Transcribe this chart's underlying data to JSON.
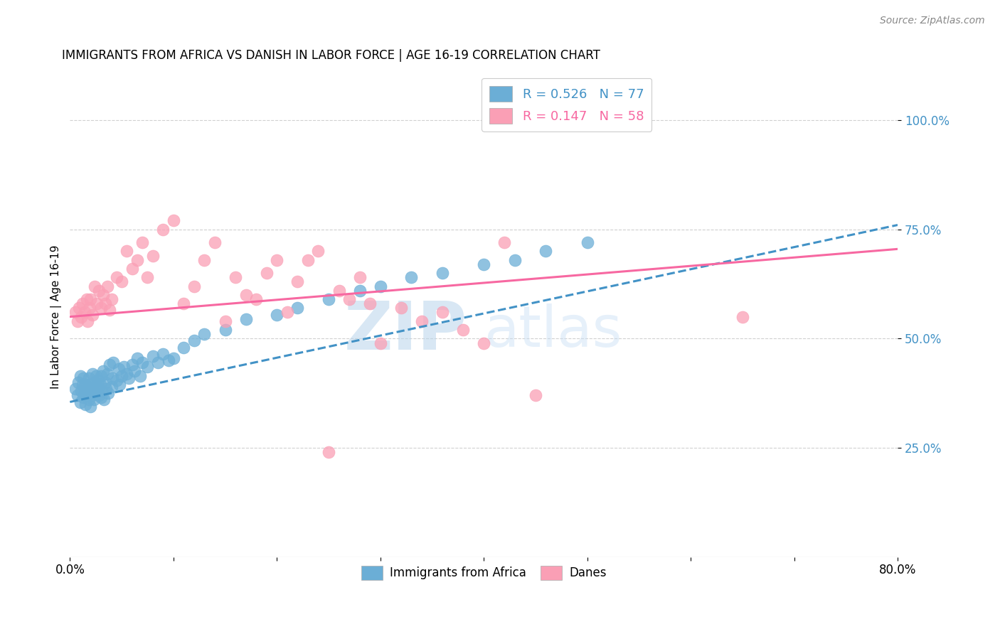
{
  "title": "IMMIGRANTS FROM AFRICA VS DANISH IN LABOR FORCE | AGE 16-19 CORRELATION CHART",
  "source": "Source: ZipAtlas.com",
  "ylabel": "In Labor Force | Age 16-19",
  "xlim": [
    0.0,
    0.8
  ],
  "ylim": [
    0.0,
    1.1
  ],
  "ytick_positions": [
    0.25,
    0.5,
    0.75,
    1.0
  ],
  "ytick_labels": [
    "25.0%",
    "50.0%",
    "75.0%",
    "100.0%"
  ],
  "blue_color": "#6baed6",
  "pink_color": "#fa9fb5",
  "blue_line_color": "#4292c6",
  "pink_line_color": "#f768a1",
  "legend_blue_label": "R = 0.526   N = 77",
  "legend_pink_label": "R = 0.147   N = 58",
  "legend_africa_label": "Immigrants from Africa",
  "legend_danes_label": "Danes",
  "watermark_zip": "ZIP",
  "watermark_atlas": "atlas",
  "background_color": "#ffffff",
  "grid_color": "#d0d0d0",
  "blue_scatter_x": [
    0.005,
    0.007,
    0.008,
    0.01,
    0.01,
    0.011,
    0.012,
    0.013,
    0.013,
    0.014,
    0.015,
    0.015,
    0.016,
    0.017,
    0.018,
    0.018,
    0.019,
    0.02,
    0.02,
    0.021,
    0.022,
    0.022,
    0.023,
    0.024,
    0.025,
    0.025,
    0.026,
    0.027,
    0.028,
    0.029,
    0.03,
    0.03,
    0.031,
    0.032,
    0.033,
    0.034,
    0.035,
    0.036,
    0.037,
    0.038,
    0.04,
    0.041,
    0.042,
    0.045,
    0.047,
    0.048,
    0.05,
    0.052,
    0.055,
    0.057,
    0.06,
    0.062,
    0.065,
    0.068,
    0.07,
    0.075,
    0.08,
    0.085,
    0.09,
    0.095,
    0.1,
    0.11,
    0.12,
    0.13,
    0.15,
    0.17,
    0.2,
    0.22,
    0.25,
    0.28,
    0.3,
    0.33,
    0.36,
    0.4,
    0.43,
    0.46,
    0.5
  ],
  "blue_scatter_y": [
    0.385,
    0.37,
    0.4,
    0.355,
    0.415,
    0.38,
    0.395,
    0.365,
    0.41,
    0.375,
    0.35,
    0.395,
    0.37,
    0.385,
    0.36,
    0.41,
    0.375,
    0.345,
    0.395,
    0.37,
    0.385,
    0.42,
    0.36,
    0.4,
    0.375,
    0.415,
    0.39,
    0.405,
    0.37,
    0.395,
    0.365,
    0.415,
    0.38,
    0.425,
    0.36,
    0.4,
    0.385,
    0.42,
    0.375,
    0.44,
    0.39,
    0.41,
    0.445,
    0.405,
    0.43,
    0.395,
    0.415,
    0.435,
    0.42,
    0.41,
    0.44,
    0.425,
    0.455,
    0.415,
    0.445,
    0.435,
    0.46,
    0.445,
    0.465,
    0.45,
    0.455,
    0.48,
    0.495,
    0.51,
    0.52,
    0.545,
    0.555,
    0.57,
    0.59,
    0.61,
    0.62,
    0.64,
    0.65,
    0.67,
    0.68,
    0.7,
    0.72
  ],
  "pink_scatter_x": [
    0.005,
    0.007,
    0.009,
    0.011,
    0.012,
    0.014,
    0.016,
    0.017,
    0.019,
    0.02,
    0.022,
    0.024,
    0.026,
    0.028,
    0.03,
    0.032,
    0.034,
    0.036,
    0.038,
    0.04,
    0.045,
    0.05,
    0.055,
    0.06,
    0.065,
    0.07,
    0.075,
    0.08,
    0.09,
    0.1,
    0.11,
    0.12,
    0.13,
    0.14,
    0.15,
    0.16,
    0.17,
    0.18,
    0.19,
    0.2,
    0.21,
    0.22,
    0.23,
    0.24,
    0.25,
    0.26,
    0.27,
    0.28,
    0.29,
    0.3,
    0.32,
    0.34,
    0.36,
    0.38,
    0.4,
    0.42,
    0.45,
    0.65
  ],
  "pink_scatter_y": [
    0.56,
    0.54,
    0.57,
    0.55,
    0.58,
    0.56,
    0.59,
    0.54,
    0.57,
    0.59,
    0.555,
    0.62,
    0.58,
    0.61,
    0.57,
    0.6,
    0.58,
    0.62,
    0.565,
    0.59,
    0.64,
    0.63,
    0.7,
    0.66,
    0.68,
    0.72,
    0.64,
    0.69,
    0.75,
    0.77,
    0.58,
    0.62,
    0.68,
    0.72,
    0.54,
    0.64,
    0.6,
    0.59,
    0.65,
    0.68,
    0.56,
    0.63,
    0.68,
    0.7,
    0.24,
    0.61,
    0.59,
    0.64,
    0.58,
    0.49,
    0.57,
    0.54,
    0.56,
    0.52,
    0.49,
    0.72,
    0.37,
    0.55
  ]
}
